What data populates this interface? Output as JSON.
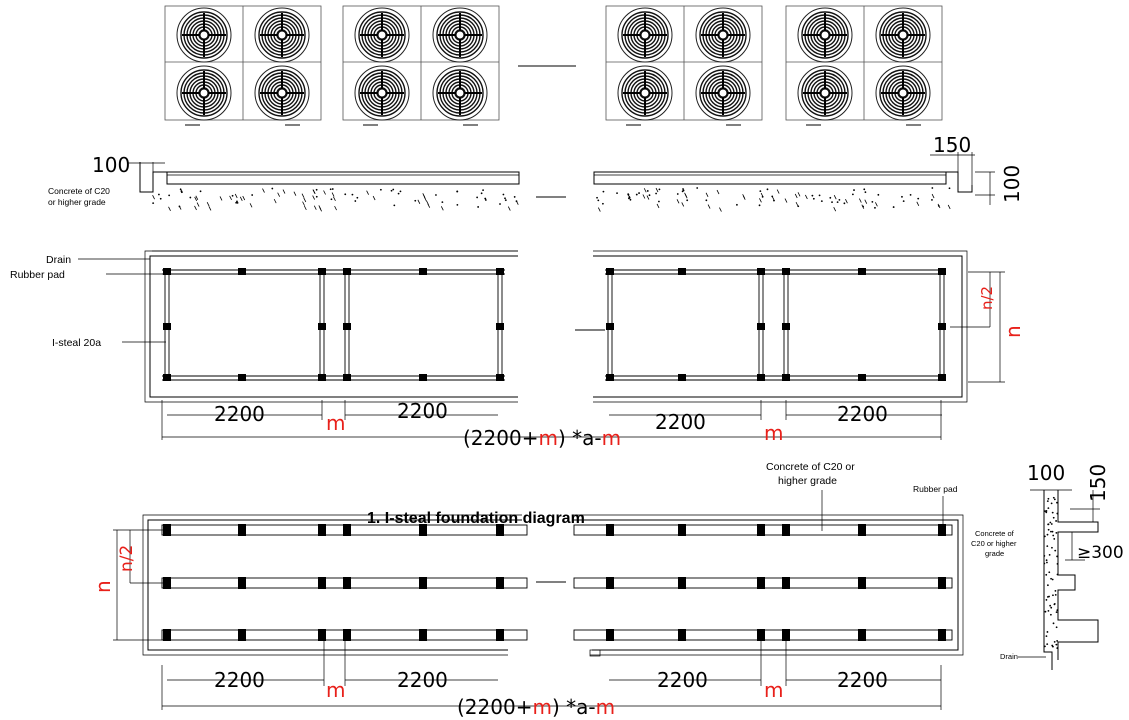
{
  "diagram": {
    "title": "1. I-steal foundation diagram",
    "labels": {
      "dim_100": "100",
      "dim_150": "150",
      "dim_2200": "2200",
      "dim_m": "m",
      "dim_n": "n",
      "dim_n_half": "n/2",
      "dim_ge300": "≥300",
      "total_open": "(2200+",
      "total_m": "m",
      "total_mid": ") *a-",
      "total_end": "m",
      "concrete_left_1": "Concrete of C20",
      "concrete_left_2": "or higher grade",
      "concrete_top_1": "Concrete of C20 or",
      "concrete_top_2": "higher grade",
      "concrete_side_1": "Concrete of",
      "concrete_side_2": "C20 or higher",
      "concrete_side_3": "grade",
      "drain": "Drain",
      "rubber_pad": "Rubber pad",
      "isteel": "I-steal 20a"
    }
  }
}
